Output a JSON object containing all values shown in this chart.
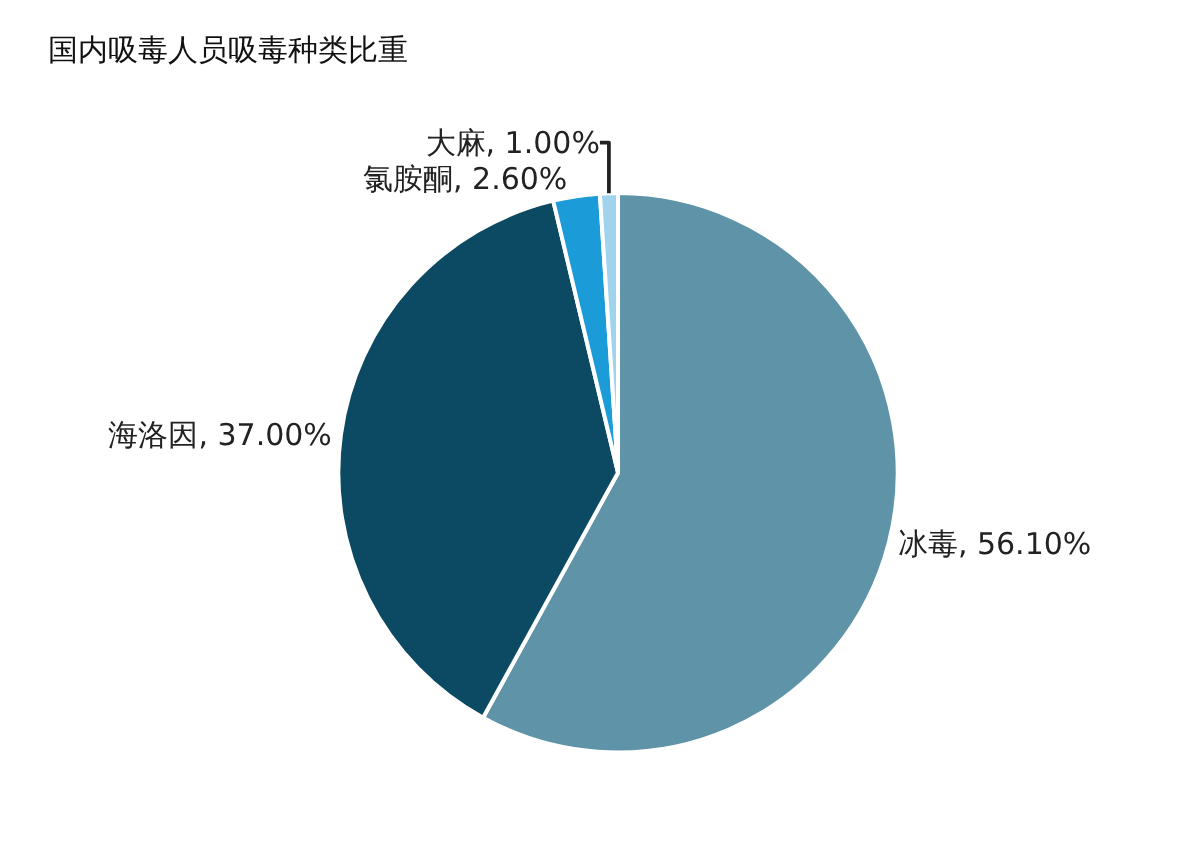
{
  "chart_data": {
    "type": "pie",
    "title": "国内吸毒人员吸毒种类比重",
    "categories": [
      "冰毒",
      "海洛因",
      "氯胺酮",
      "大麻"
    ],
    "values": [
      56.1,
      37.0,
      2.6,
      1.0
    ],
    "colors": [
      "#5f93a8",
      "#0b4a62",
      "#1b9bd7",
      "#9fd4ec"
    ],
    "value_labels": [
      "56.10%",
      "37.00%",
      "2.60%",
      "1.00%"
    ],
    "legend": false
  }
}
